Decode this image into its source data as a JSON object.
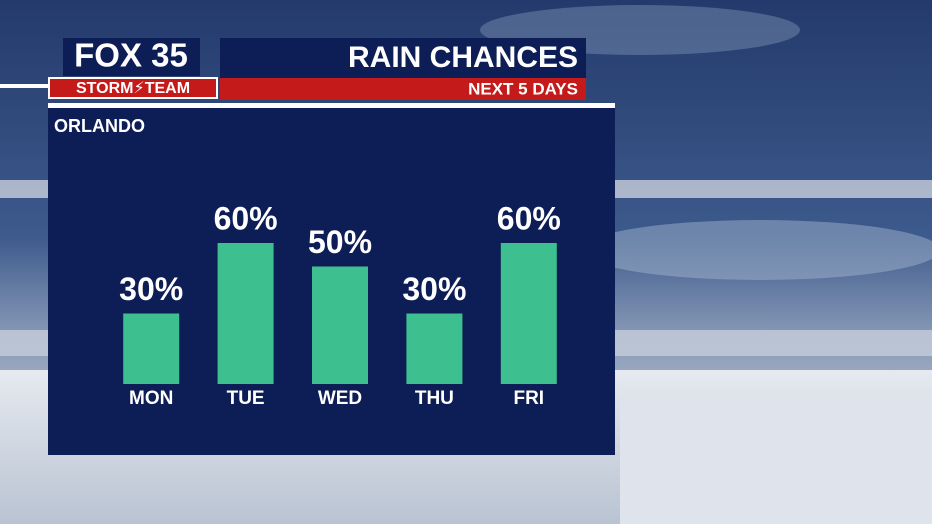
{
  "chart_data": {
    "type": "bar",
    "brand": "FOX 35",
    "team": "STORM⚡TEAM",
    "title": "RAIN CHANCES",
    "subtitle": "NEXT 5 DAYS",
    "location": "ORLANDO",
    "categories": [
      "MON",
      "TUE",
      "WED",
      "THU",
      "FRI"
    ],
    "values": [
      30,
      60,
      50,
      30,
      60
    ],
    "value_labels": [
      "30%",
      "60%",
      "50%",
      "30%",
      "60%"
    ],
    "color": "#3ebf8f",
    "ylim": [
      0,
      100
    ]
  }
}
